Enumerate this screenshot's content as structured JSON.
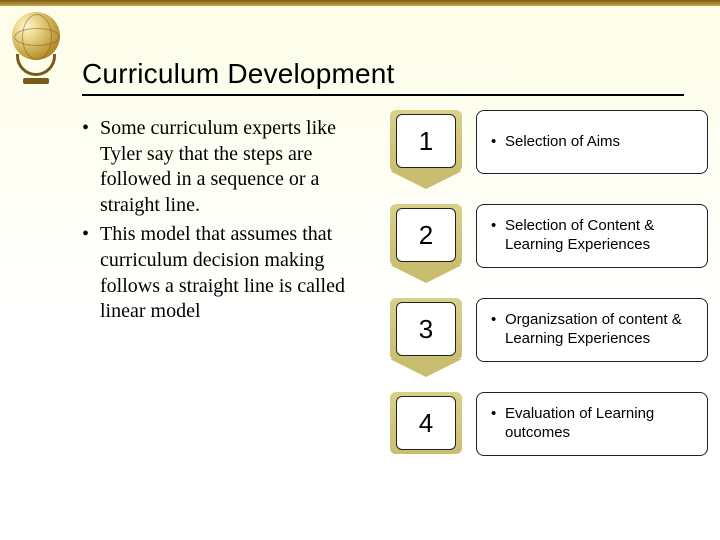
{
  "title": "Curriculum Development",
  "left_bullets": [
    "Some curriculum experts like Tyler say that the steps are followed in a sequence or a straight line.",
    "This model that assumes that curriculum decision making follows a straight line is called linear model"
  ],
  "steps": [
    {
      "num": "1",
      "text": "Selection of Aims"
    },
    {
      "num": "2",
      "text": "Selection of Content & Learning Experiences"
    },
    {
      "num": "3",
      "text": "Organizsation of content & Learning Experiences"
    },
    {
      "num": "4",
      "text": "Evaluation of Learning outcomes"
    }
  ],
  "colors": {
    "gold_shadow_top": "#d9d08a",
    "gold_shadow_bottom": "#c9be70",
    "box_border": "#222222",
    "background_top": "#fdfde8"
  }
}
